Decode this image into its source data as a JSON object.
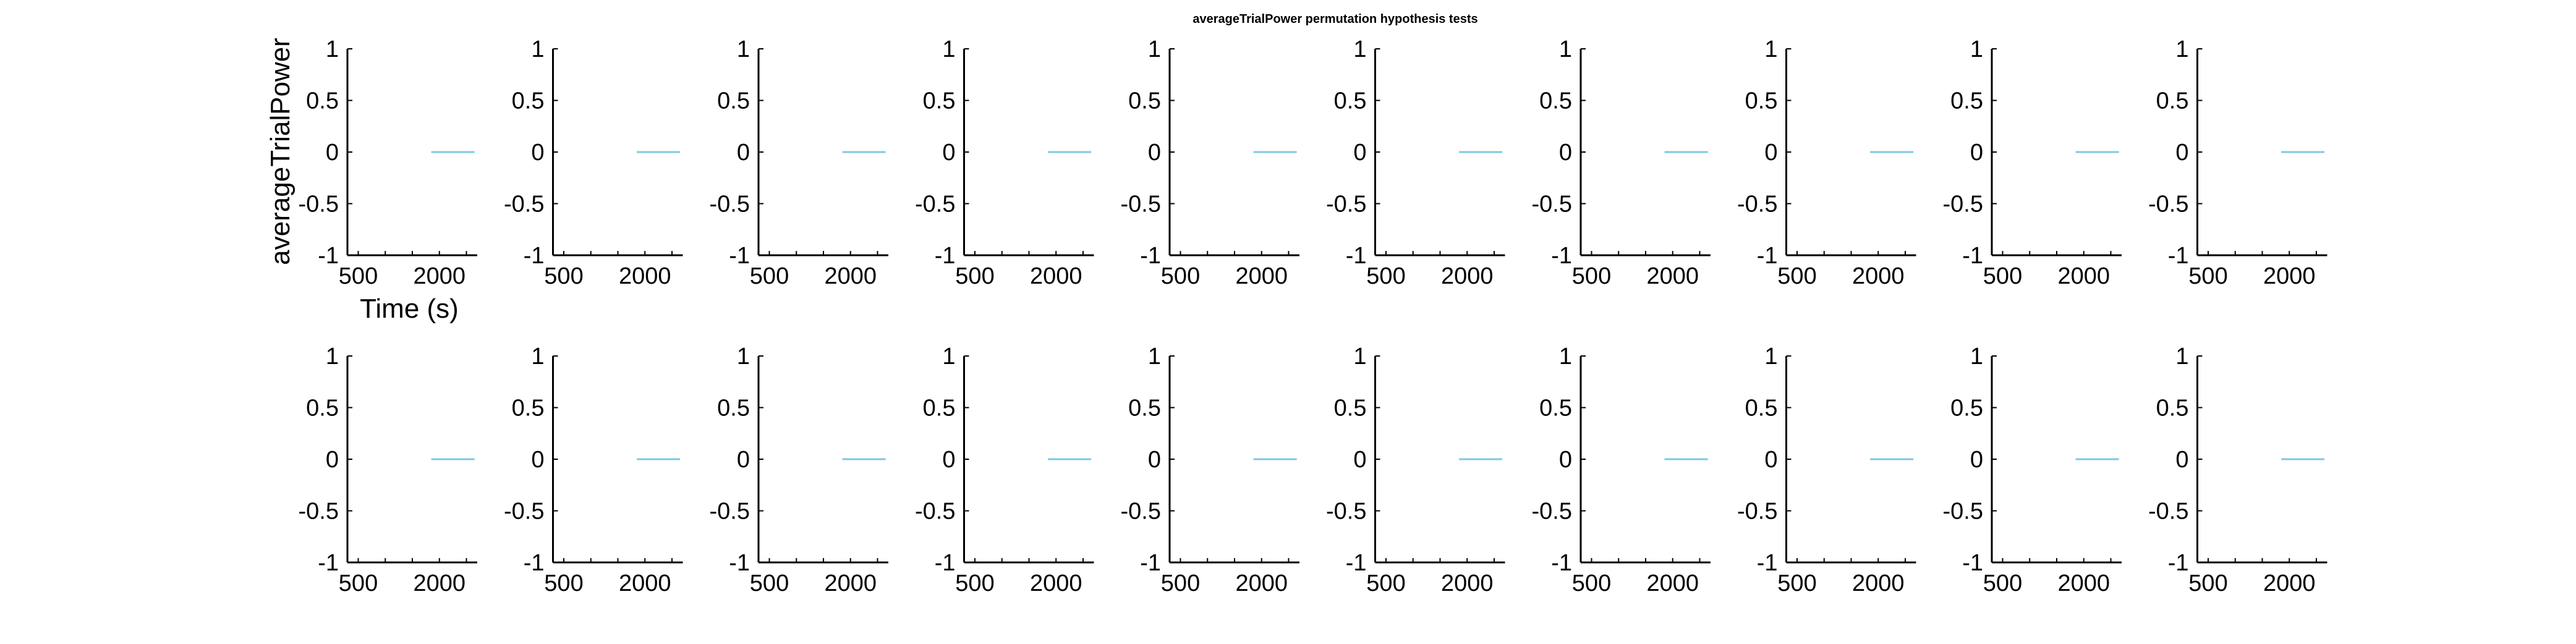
{
  "figure": {
    "title": "averageTrialPower permutation hypothesis tests",
    "ylabel": "averageTrialPower",
    "xlabel": "Time (s)",
    "rows": 2,
    "cols": 10
  },
  "style": {
    "axis_color": "#000000",
    "series_color": "#7ec8e3"
  },
  "chart_data": {
    "type": "line",
    "panel_count": 20,
    "ylim": [
      -1,
      1
    ],
    "yticks": [
      1,
      0.5,
      0,
      -0.5,
      -1
    ],
    "ytick_labels": [
      "1",
      "0.5",
      "0",
      "-0.5",
      "-1"
    ],
    "xlim": [
      300,
      2700
    ],
    "xticks": [
      500,
      1000,
      1500,
      2000,
      2500
    ],
    "xtick_labels": [
      "500",
      "",
      "",
      "2000",
      ""
    ],
    "grid": false,
    "series": [
      {
        "x": [
          1850,
          2650
        ],
        "y": [
          0,
          0
        ]
      }
    ]
  }
}
